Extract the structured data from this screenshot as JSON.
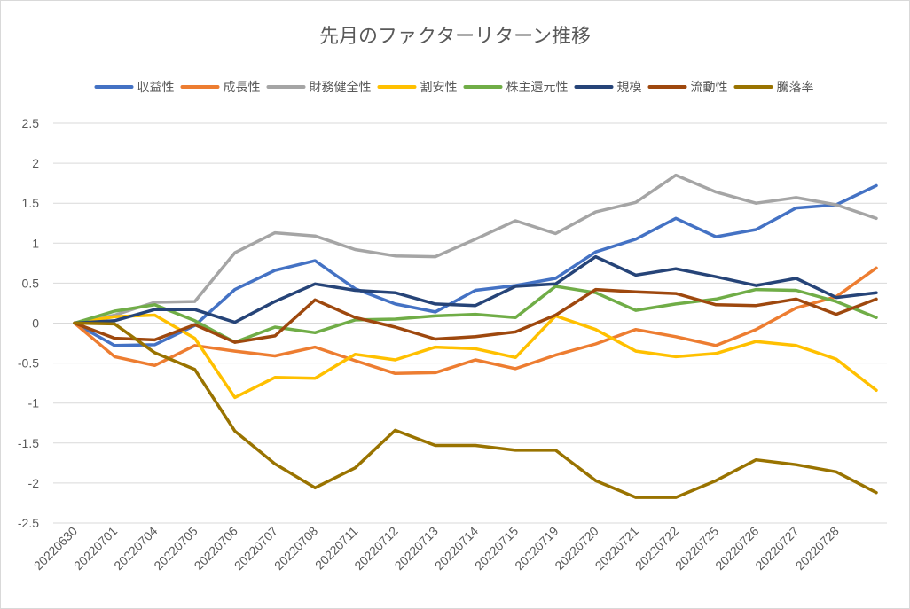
{
  "chart_data": {
    "type": "line",
    "title": "先月のファクターリターン推移",
    "legend_position": "top",
    "grid": true,
    "ylim": [
      -2.5,
      2.5
    ],
    "yticks": [
      "2.5",
      "2",
      "1.5",
      "1",
      "0.5",
      "0",
      "-0.5",
      "-1",
      "-1.5",
      "-2",
      "-2.5"
    ],
    "ytick_values": [
      2.5,
      2,
      1.5,
      1,
      0.5,
      0,
      -0.5,
      -1,
      -1.5,
      -2,
      -2.5
    ],
    "categories": [
      "20220630",
      "20220701",
      "20220704",
      "20220705",
      "20220706",
      "20220707",
      "20220708",
      "20220711",
      "20220712",
      "20220713",
      "20220714",
      "20220715",
      "20220719",
      "20220720",
      "20220721",
      "20220722",
      "20220725",
      "20220726",
      "20220727",
      "20220728",
      ""
    ],
    "series": [
      {
        "name": "収益性",
        "color": "#4472C4",
        "values": [
          0,
          -0.28,
          -0.27,
          -0.03,
          0.42,
          0.66,
          0.78,
          0.43,
          0.24,
          0.14,
          0.41,
          0.47,
          0.56,
          0.89,
          1.05,
          1.31,
          1.08,
          1.17,
          1.44,
          1.48,
          1.72
        ]
      },
      {
        "name": "成長性",
        "color": "#ED7D31",
        "values": [
          0,
          -0.42,
          -0.53,
          -0.28,
          -0.35,
          -0.41,
          -0.3,
          -0.47,
          -0.63,
          -0.62,
          -0.46,
          -0.57,
          -0.4,
          -0.26,
          -0.08,
          -0.17,
          -0.28,
          -0.08,
          0.19,
          0.33,
          0.69
        ]
      },
      {
        "name": "財務健全性",
        "color": "#A5A5A5",
        "values": [
          0,
          0.1,
          0.26,
          0.27,
          0.88,
          1.13,
          1.09,
          0.92,
          0.84,
          0.83,
          1.05,
          1.28,
          1.12,
          1.39,
          1.51,
          1.85,
          1.64,
          1.5,
          1.57,
          1.48,
          1.31
        ]
      },
      {
        "name": "割安性",
        "color": "#FFC000",
        "values": [
          0,
          0.08,
          0.1,
          -0.19,
          -0.93,
          -0.68,
          -0.69,
          -0.39,
          -0.46,
          -0.3,
          -0.32,
          -0.43,
          0.09,
          -0.08,
          -0.35,
          -0.42,
          -0.38,
          -0.23,
          -0.28,
          -0.45,
          -0.84
        ]
      },
      {
        "name": "株主還元性",
        "color": "#70AD47",
        "values": [
          0,
          0.15,
          0.23,
          0.03,
          -0.24,
          -0.05,
          -0.12,
          0.04,
          0.05,
          0.09,
          0.11,
          0.07,
          0.46,
          0.38,
          0.16,
          0.24,
          0.3,
          0.42,
          0.41,
          0.27,
          0.07
        ]
      },
      {
        "name": "規模",
        "color": "#264478",
        "values": [
          0,
          0.03,
          0.17,
          0.17,
          0.01,
          0.27,
          0.49,
          0.41,
          0.38,
          0.24,
          0.22,
          0.46,
          0.49,
          0.83,
          0.6,
          0.68,
          0.58,
          0.47,
          0.56,
          0.32,
          0.38
        ]
      },
      {
        "name": "流動性",
        "color": "#9E480E",
        "values": [
          0,
          -0.19,
          -0.21,
          -0.02,
          -0.24,
          -0.16,
          0.29,
          0.07,
          -0.05,
          -0.2,
          -0.17,
          -0.11,
          0.1,
          0.42,
          0.39,
          0.37,
          0.23,
          0.22,
          0.3,
          0.11,
          0.3
        ]
      },
      {
        "name": "騰落率",
        "color": "#997300",
        "values": [
          0,
          -0.01,
          -0.37,
          -0.58,
          -1.35,
          -1.76,
          -2.06,
          -1.81,
          -1.34,
          -1.53,
          -1.53,
          -1.59,
          -1.59,
          -1.97,
          -2.18,
          -2.18,
          -1.97,
          -1.71,
          -1.77,
          -1.86,
          -2.12
        ]
      }
    ]
  }
}
